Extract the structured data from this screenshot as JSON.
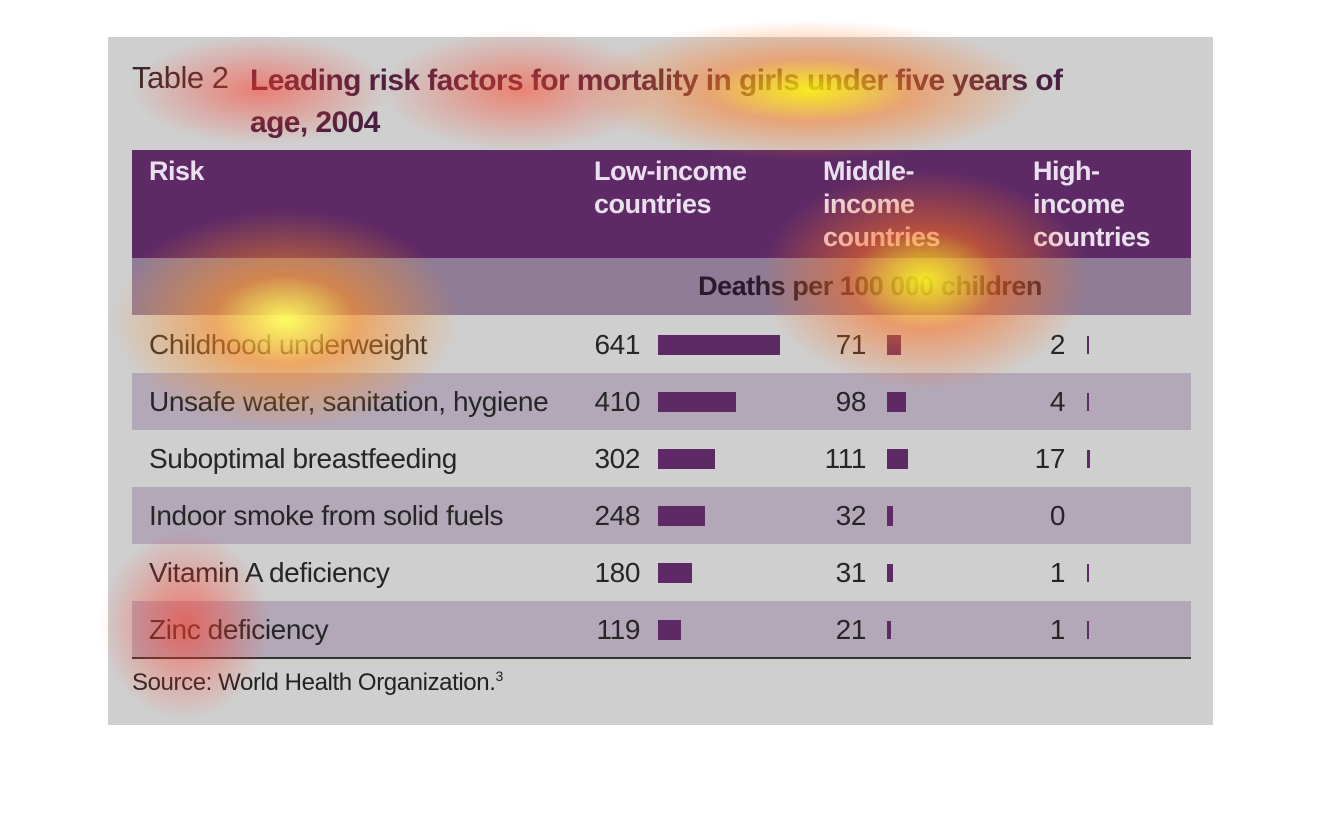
{
  "table": {
    "label": "Table 2",
    "title": "Leading risk factors for mortality in girls under five years of age, 2004",
    "header": [
      "Risk",
      "Low-income countries",
      "Middle-income countries",
      "High-income countries"
    ],
    "subheader": "Deaths per 100 000 children",
    "rows": [
      [
        "Childhood underweight",
        641,
        71,
        2
      ],
      [
        "Unsafe water, sanitation, hygiene",
        410,
        98,
        4
      ],
      [
        "Suboptimal breastfeeding",
        302,
        111,
        17
      ],
      [
        "Indoor smoke from solid fuels",
        248,
        32,
        0
      ],
      [
        "Vitamin A deficiency",
        180,
        31,
        1
      ],
      [
        "Zinc deficiency",
        119,
        21,
        1
      ]
    ],
    "source": "Source: World Health Organization.",
    "source_note": "3"
  }
}
